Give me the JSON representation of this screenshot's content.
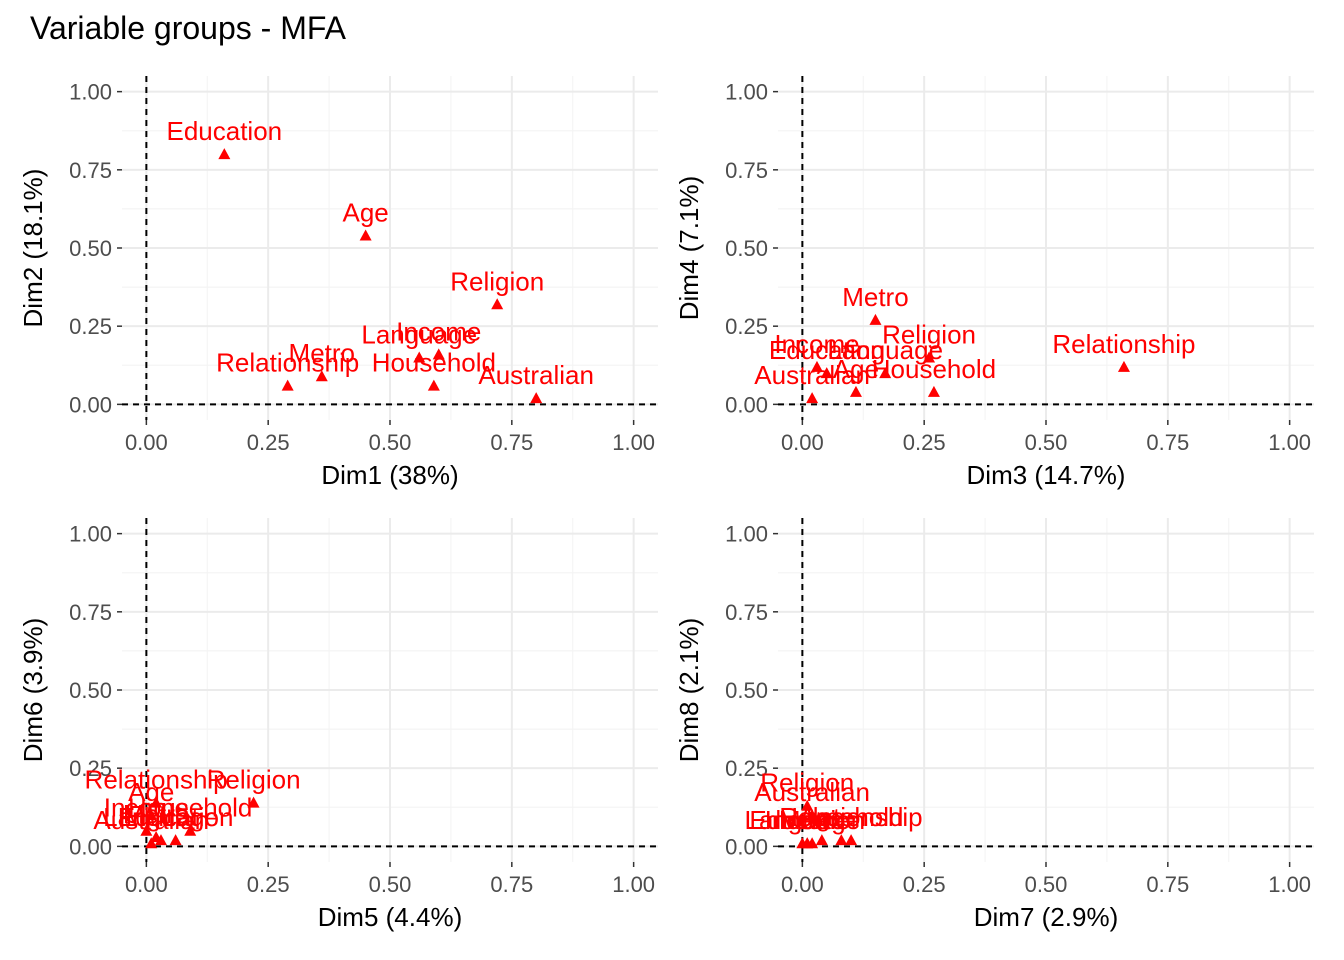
{
  "title": "Variable groups - MFA",
  "colors": {
    "points": "#FF0000",
    "grid": "#EBEBEB",
    "axis_text": "#4D4D4D"
  },
  "chart_data": [
    {
      "type": "scatter",
      "xlabel": "Dim1 (38%)",
      "ylabel": "Dim2 (18.1%)",
      "xlim": [
        -0.05,
        1.05
      ],
      "ylim": [
        -0.05,
        1.05
      ],
      "xticks": [
        "0.00",
        "0.25",
        "0.50",
        "0.75",
        "1.00"
      ],
      "yticks": [
        "0.00",
        "0.25",
        "0.50",
        "0.75",
        "1.00"
      ],
      "points": [
        {
          "label": "Education",
          "x": 0.16,
          "y": 0.8
        },
        {
          "label": "Age",
          "x": 0.45,
          "y": 0.54
        },
        {
          "label": "Religion",
          "x": 0.72,
          "y": 0.32
        },
        {
          "label": "Language",
          "x": 0.56,
          "y": 0.15
        },
        {
          "label": "Income",
          "x": 0.6,
          "y": 0.16
        },
        {
          "label": "Metro",
          "x": 0.36,
          "y": 0.09
        },
        {
          "label": "Relationship",
          "x": 0.29,
          "y": 0.06
        },
        {
          "label": "Household",
          "x": 0.59,
          "y": 0.06
        },
        {
          "label": "Australian",
          "x": 0.8,
          "y": 0.02
        }
      ]
    },
    {
      "type": "scatter",
      "xlabel": "Dim3 (14.7%)",
      "ylabel": "Dim4 (7.1%)",
      "xlim": [
        -0.05,
        1.05
      ],
      "ylim": [
        -0.05,
        1.05
      ],
      "xticks": [
        "0.00",
        "0.25",
        "0.50",
        "0.75",
        "1.00"
      ],
      "yticks": [
        "0.00",
        "0.25",
        "0.50",
        "0.75",
        "1.00"
      ],
      "points": [
        {
          "label": "Metro",
          "x": 0.15,
          "y": 0.27
        },
        {
          "label": "Religion",
          "x": 0.26,
          "y": 0.15
        },
        {
          "label": "Relationship",
          "x": 0.66,
          "y": 0.12
        },
        {
          "label": "Income",
          "x": 0.03,
          "y": 0.12
        },
        {
          "label": "Education",
          "x": 0.05,
          "y": 0.1
        },
        {
          "label": "Language",
          "x": 0.17,
          "y": 0.1
        },
        {
          "label": "Household",
          "x": 0.27,
          "y": 0.04
        },
        {
          "label": "Age",
          "x": 0.11,
          "y": 0.04
        },
        {
          "label": "Australian",
          "x": 0.02,
          "y": 0.02
        }
      ]
    },
    {
      "type": "scatter",
      "xlabel": "Dim5 (4.4%)",
      "ylabel": "Dim6 (3.9%)",
      "xlim": [
        -0.05,
        1.05
      ],
      "ylim": [
        -0.05,
        1.05
      ],
      "xticks": [
        "0.00",
        "0.25",
        "0.50",
        "0.75",
        "1.00"
      ],
      "yticks": [
        "0.00",
        "0.25",
        "0.50",
        "0.75",
        "1.00"
      ],
      "points": [
        {
          "label": "Religion",
          "x": 0.22,
          "y": 0.14
        },
        {
          "label": "Relationship",
          "x": 0.02,
          "y": 0.14
        },
        {
          "label": "Age",
          "x": 0.01,
          "y": 0.1
        },
        {
          "label": "Household",
          "x": 0.09,
          "y": 0.05
        },
        {
          "label": "Income",
          "x": 0.0,
          "y": 0.05
        },
        {
          "label": "Metro",
          "x": 0.02,
          "y": 0.03
        },
        {
          "label": "Language",
          "x": 0.03,
          "y": 0.02
        },
        {
          "label": "Education",
          "x": 0.06,
          "y": 0.02
        },
        {
          "label": "Australian",
          "x": 0.01,
          "y": 0.01
        }
      ]
    },
    {
      "type": "scatter",
      "xlabel": "Dim7 (2.9%)",
      "ylabel": "Dim8 (2.1%)",
      "xlim": [
        -0.05,
        1.05
      ],
      "ylim": [
        -0.05,
        1.05
      ],
      "xticks": [
        "0.00",
        "0.25",
        "0.50",
        "0.75",
        "1.00"
      ],
      "yticks": [
        "0.00",
        "0.25",
        "0.50",
        "0.75",
        "1.00"
      ],
      "points": [
        {
          "label": "Religion",
          "x": 0.01,
          "y": 0.13
        },
        {
          "label": "Australian",
          "x": 0.02,
          "y": 0.1
        },
        {
          "label": "Relationship",
          "x": 0.1,
          "y": 0.02
        },
        {
          "label": "Household",
          "x": 0.08,
          "y": 0.02
        },
        {
          "label": "Age",
          "x": 0.04,
          "y": 0.02
        },
        {
          "label": "Metro",
          "x": 0.02,
          "y": 0.01
        },
        {
          "label": "Education",
          "x": 0.01,
          "y": 0.01
        },
        {
          "label": "Language",
          "x": 0.0,
          "y": 0.01
        },
        {
          "label": "Income",
          "x": 0.01,
          "y": 0.01
        }
      ]
    }
  ]
}
